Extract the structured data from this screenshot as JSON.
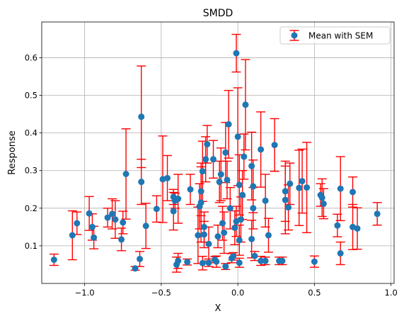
{
  "chart_data": {
    "type": "scatter",
    "title": "SMDD",
    "xlabel": "X",
    "ylabel": "Response",
    "xlim": [
      -1.28,
      1.02
    ],
    "ylim": [
      0.0,
      0.695
    ],
    "xticks": [
      -1.0,
      -0.5,
      0.0,
      0.5,
      1.0
    ],
    "xtick_labels": [
      "−1.0",
      "−0.5",
      "0.0",
      "0.5",
      "1.0"
    ],
    "yticks": [
      0.1,
      0.2,
      0.3,
      0.4,
      0.5,
      0.6
    ],
    "ytick_labels": [
      "0.1",
      "0.2",
      "0.3",
      "0.4",
      "0.5",
      "0.6"
    ],
    "grid": true,
    "legend": {
      "position": "top-right",
      "entries": [
        "Mean with SEM"
      ]
    },
    "colors": {
      "marker": "#1f77b4",
      "errorbar": "#ff0000"
    },
    "series": [
      {
        "name": "Mean with SEM",
        "points": [
          [
            -1.2,
            0.063,
            0.015
          ],
          [
            -1.08,
            0.128,
            0.065
          ],
          [
            -1.05,
            0.16,
            0.03
          ],
          [
            -0.97,
            0.186,
            0.045
          ],
          [
            -0.95,
            0.15,
            0.035
          ],
          [
            -0.94,
            0.122,
            0.03
          ],
          [
            -0.85,
            0.175,
            0.025
          ],
          [
            -0.82,
            0.185,
            0.04
          ],
          [
            -0.8,
            0.17,
            0.05
          ],
          [
            -0.76,
            0.117,
            0.03
          ],
          [
            -0.75,
            0.162,
            0.03
          ],
          [
            -0.73,
            0.291,
            0.12
          ],
          [
            -0.67,
            0.04,
            0.005
          ],
          [
            -0.64,
            0.065,
            0.02
          ],
          [
            -0.63,
            0.443,
            0.135
          ],
          [
            -0.63,
            0.27,
            0.06
          ],
          [
            -0.6,
            0.153,
            0.06
          ],
          [
            -0.53,
            0.198,
            0.035
          ],
          [
            -0.49,
            0.277,
            0.115
          ],
          [
            -0.46,
            0.28,
            0.06
          ],
          [
            -0.42,
            0.192,
            0.05
          ],
          [
            -0.41,
            0.22,
            0.02
          ],
          [
            -0.42,
            0.23,
            0.02
          ],
          [
            -0.4,
            0.05,
            0.02
          ],
          [
            -0.39,
            0.225,
            0.065
          ],
          [
            -0.39,
            0.06,
            0.02
          ],
          [
            -0.33,
            0.057,
            0.008
          ],
          [
            -0.31,
            0.25,
            0.04
          ],
          [
            -0.26,
            0.128,
            0.075
          ],
          [
            -0.25,
            0.205,
            0.06
          ],
          [
            -0.24,
            0.215,
            0.105
          ],
          [
            -0.24,
            0.245,
            0.065
          ],
          [
            -0.23,
            0.054,
            0.018
          ],
          [
            -0.23,
            0.298,
            0.08
          ],
          [
            -0.22,
            0.15,
            0.04
          ],
          [
            -0.22,
            0.13,
            0.035
          ],
          [
            -0.21,
            0.33,
            0.06
          ],
          [
            -0.2,
            0.37,
            0.05
          ],
          [
            -0.19,
            0.105,
            0.045
          ],
          [
            -0.19,
            0.055,
            0.01
          ],
          [
            -0.16,
            0.33,
            0.05
          ],
          [
            -0.15,
            0.063,
            0.008
          ],
          [
            -0.14,
            0.058,
            0.015
          ],
          [
            -0.13,
            0.125,
            0.03
          ],
          [
            -0.12,
            0.27,
            0.055
          ],
          [
            -0.11,
            0.29,
            0.07
          ],
          [
            -0.1,
            0.16,
            0.045
          ],
          [
            -0.09,
            0.135,
            0.055
          ],
          [
            -0.08,
            0.348,
            0.08
          ],
          [
            -0.08,
            0.045,
            0.008
          ],
          [
            -0.07,
            0.275,
            0.05
          ],
          [
            -0.06,
            0.423,
            0.09
          ],
          [
            -0.05,
            0.2,
            0.055
          ],
          [
            -0.04,
            0.067,
            0.012
          ],
          [
            -0.03,
            0.072,
            0.01
          ],
          [
            -0.02,
            0.148,
            0.045
          ],
          [
            -0.01,
            0.612,
            0.05
          ],
          [
            -0.01,
            0.165,
            0.04
          ],
          [
            0.0,
            0.39,
            0.13
          ],
          [
            0.01,
            0.262,
            0.08
          ],
          [
            0.01,
            0.115,
            0.04
          ],
          [
            0.02,
            0.17,
            0.06
          ],
          [
            0.01,
            0.055,
            0.012
          ],
          [
            0.03,
            0.235,
            0.065
          ],
          [
            0.04,
            0.337,
            0.06
          ],
          [
            0.05,
            0.475,
            0.12
          ],
          [
            0.09,
            0.312,
            0.09
          ],
          [
            0.09,
            0.118,
            0.05
          ],
          [
            0.1,
            0.258,
            0.07
          ],
          [
            0.1,
            0.2,
            0.055
          ],
          [
            0.11,
            0.073,
            0.012
          ],
          [
            0.15,
            0.356,
            0.1
          ],
          [
            0.15,
            0.06,
            0.012
          ],
          [
            0.18,
            0.06,
            0.01
          ],
          [
            0.18,
            0.22,
            0.07
          ],
          [
            0.2,
            0.128,
            0.045
          ],
          [
            0.24,
            0.368,
            0.07
          ],
          [
            0.27,
            0.06,
            0.01
          ],
          [
            0.29,
            0.06,
            0.01
          ],
          [
            0.31,
            0.245,
            0.08
          ],
          [
            0.31,
            0.222,
            0.09
          ],
          [
            0.33,
            0.202,
            0.06
          ],
          [
            0.34,
            0.265,
            0.055
          ],
          [
            0.4,
            0.254,
            0.1
          ],
          [
            0.42,
            0.272,
            0.085
          ],
          [
            0.45,
            0.255,
            0.12
          ],
          [
            0.5,
            0.058,
            0.015
          ],
          [
            0.54,
            0.235,
            0.03
          ],
          [
            0.55,
            0.228,
            0.05
          ],
          [
            0.56,
            0.212,
            0.04
          ],
          [
            0.65,
            0.154,
            0.03
          ],
          [
            0.67,
            0.252,
            0.085
          ],
          [
            0.67,
            0.08,
            0.03
          ],
          [
            0.75,
            0.243,
            0.04
          ],
          [
            0.75,
            0.15,
            0.06
          ],
          [
            0.78,
            0.146,
            0.055
          ],
          [
            0.91,
            0.185,
            0.03
          ]
        ]
      }
    ]
  }
}
